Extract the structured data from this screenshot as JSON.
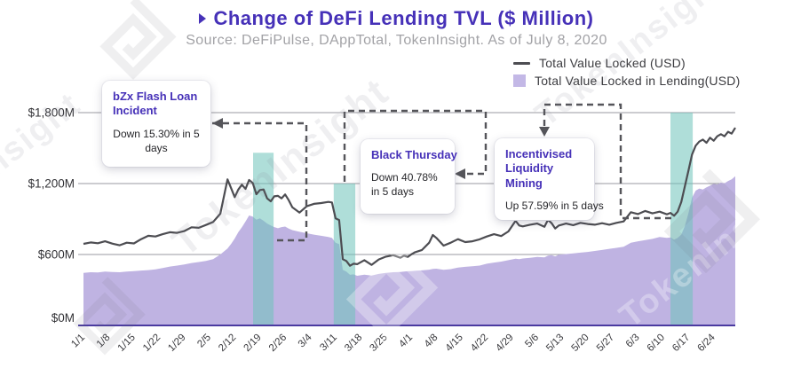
{
  "header": {
    "title": "Change of DeFi Lending TVL ($ Million)",
    "subtitle": "Source: DeFiPulse, DAppTotal, TokenInsight. As of July 8, 2020",
    "accent_color": "#4631b8"
  },
  "legend": [
    {
      "label": "Total Value Locked (USD)",
      "swatch": "line",
      "color": "#4d4d52"
    },
    {
      "label": "Total Value Locked in Lending(USD)",
      "swatch": "square",
      "color": "#c3b8e6"
    }
  ],
  "annotations": [
    {
      "title": "bZx Flash Loan Incident",
      "body": "Down 15.30% in 5 days"
    },
    {
      "title": "Black Thursday",
      "body": "Down 40.78% in 5 days"
    },
    {
      "title": "Incentivised Liquidity Mining",
      "body": "Up 57.59% in 5 days"
    }
  ],
  "watermark_text": "TokenInsight",
  "chart_data": {
    "type": "area",
    "title": "Change of DeFi Lending TVL ($ Million)",
    "x_unit": "days since 2020-01-01",
    "x_domain": [
      0,
      181
    ],
    "ylim": [
      0,
      1800
    ],
    "grid": true,
    "legend_position": "top-right",
    "colors": {
      "line": "#4d4d52",
      "area": "#bfb3e2",
      "band": "rgba(110,195,185,0.55)",
      "axis": "#4a3aa0",
      "gridline": "#9a9aa0",
      "connector": "#55555a",
      "tick_text": "#3a3a3e"
    },
    "yticks": [
      {
        "value": 0,
        "label": "$0M"
      },
      {
        "value": 600,
        "label": "$600M"
      },
      {
        "value": 1200,
        "label": "$1,200M"
      },
      {
        "value": 1800,
        "label": "$1,800M"
      }
    ],
    "xticks": [
      {
        "day": 0,
        "label": "1/1"
      },
      {
        "day": 7,
        "label": "1/8"
      },
      {
        "day": 14,
        "label": "1/15"
      },
      {
        "day": 21,
        "label": "1/22"
      },
      {
        "day": 28,
        "label": "1/29"
      },
      {
        "day": 35,
        "label": "2/5"
      },
      {
        "day": 42,
        "label": "2/12"
      },
      {
        "day": 49,
        "label": "2/19"
      },
      {
        "day": 56,
        "label": "2/26"
      },
      {
        "day": 63,
        "label": "3/4"
      },
      {
        "day": 70,
        "label": "3/11"
      },
      {
        "day": 77,
        "label": "3/18"
      },
      {
        "day": 84,
        "label": "3/25"
      },
      {
        "day": 91,
        "label": "4/1"
      },
      {
        "day": 98,
        "label": "4/8"
      },
      {
        "day": 105,
        "label": "4/15"
      },
      {
        "day": 112,
        "label": "4/22"
      },
      {
        "day": 119,
        "label": "4/29"
      },
      {
        "day": 126,
        "label": "5/6"
      },
      {
        "day": 133,
        "label": "5/13"
      },
      {
        "day": 140,
        "label": "5/20"
      },
      {
        "day": 147,
        "label": "5/27"
      },
      {
        "day": 154,
        "label": "6/3"
      },
      {
        "day": 161,
        "label": "6/10"
      },
      {
        "day": 168,
        "label": "6/17"
      },
      {
        "day": 175,
        "label": "6/24"
      }
    ],
    "highlight_bands": [
      {
        "from_day": 47.1,
        "to_day": 52.8,
        "top_value": 1460
      },
      {
        "from_day": 69.5,
        "to_day": 75.5,
        "top_value": 1200
      },
      {
        "from_day": 163.0,
        "to_day": 169.2,
        "top_value": 1800
      }
    ],
    "days": [
      0,
      2,
      4,
      6,
      8,
      10,
      12,
      14,
      16,
      18,
      20,
      22,
      24,
      26,
      28,
      30,
      32,
      34,
      36,
      38,
      40,
      41,
      42,
      43,
      44,
      45,
      46,
      47,
      48,
      49,
      50,
      51,
      52,
      53,
      54,
      55,
      56,
      57,
      58,
      60,
      62,
      64,
      66,
      68,
      69,
      70,
      71,
      72,
      73,
      74,
      75,
      76,
      78,
      80,
      82,
      84,
      86,
      88,
      89,
      90,
      91,
      92,
      94,
      96,
      97,
      98,
      100,
      102,
      104,
      106,
      108,
      110,
      112,
      114,
      116,
      118,
      120,
      121,
      122,
      124,
      126,
      128,
      129,
      130,
      131,
      132,
      134,
      136,
      138,
      140,
      142,
      144,
      146,
      148,
      150,
      152,
      154,
      156,
      158,
      160,
      162,
      163,
      164,
      165,
      166,
      167,
      168,
      169,
      170,
      171,
      172,
      173,
      174,
      175,
      176,
      177,
      178,
      179,
      180,
      181
    ],
    "series": [
      {
        "name": "Total Value Locked (USD)",
        "style": "line",
        "values": [
          690,
          702,
          695,
          712,
          692,
          678,
          700,
          694,
          730,
          758,
          752,
          772,
          788,
          783,
          798,
          830,
          826,
          850,
          875,
          945,
          1235,
          1160,
          1085,
          1150,
          1190,
          1155,
          1230,
          1205,
          1110,
          1145,
          1150,
          1075,
          1050,
          1092,
          1096,
          1075,
          1108,
          1060,
          1000,
          955,
          1008,
          1028,
          1035,
          1045,
          1040,
          905,
          892,
          560,
          545,
          505,
          522,
          518,
          552,
          512,
          558,
          582,
          594,
          572,
          590,
          578,
          600,
          618,
          638,
          700,
          765,
          740,
          675,
          700,
          730,
          705,
          712,
          728,
          752,
          772,
          756,
          795,
          885,
          845,
          838,
          852,
          862,
          835,
          893,
          865,
          820,
          845,
          862,
          848,
          868,
          858,
          852,
          865,
          852,
          868,
          880,
          958,
          942,
          968,
          948,
          962,
          940,
          952,
          928,
          962,
          1045,
          1175,
          1310,
          1445,
          1520,
          1555,
          1572,
          1545,
          1588,
          1562,
          1600,
          1618,
          1600,
          1638,
          1622,
          1672
        ]
      },
      {
        "name": "Total Value Locked in Lending(USD)",
        "style": "area",
        "values": [
          445,
          450,
          448,
          455,
          452,
          450,
          456,
          460,
          464,
          468,
          474,
          486,
          498,
          506,
          515,
          528,
          536,
          545,
          560,
          600,
          650,
          690,
          735,
          790,
          830,
          880,
          930,
          920,
          895,
          905,
          885,
          862,
          845,
          832,
          822,
          832,
          836,
          820,
          806,
          792,
          780,
          768,
          758,
          748,
          740,
          700,
          688,
          470,
          455,
          428,
          432,
          420,
          430,
          422,
          436,
          444,
          450,
          452,
          455,
          458,
          460,
          462,
          466,
          472,
          478,
          480,
          470,
          476,
          490,
          496,
          500,
          506,
          522,
          532,
          540,
          552,
          565,
          560,
          566,
          572,
          580,
          576,
          590,
          594,
          584,
          598,
          604,
          610,
          616,
          622,
          630,
          638,
          648,
          656,
          666,
          700,
          712,
          722,
          732,
          748,
          740,
          745,
          725,
          740,
          768,
          840,
          950,
          1080,
          1140,
          1158,
          1150,
          1168,
          1182,
          1198,
          1192,
          1208,
          1202,
          1222,
          1235,
          1262
        ]
      }
    ]
  }
}
